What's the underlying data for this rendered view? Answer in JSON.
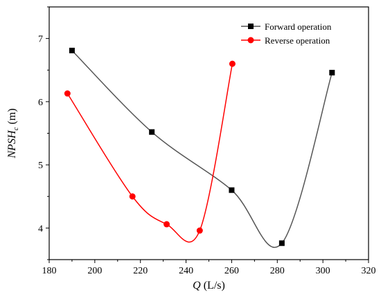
{
  "chart_data": {
    "type": "line",
    "title": "",
    "xlabel": "Q (L/s)",
    "xlabel_var": "Q",
    "xlabel_unit": " (L/s)",
    "ylabel": "NPSHc (m)",
    "ylabel_var": "NPSH",
    "ylabel_sub": "c",
    "ylabel_unit": " (m)",
    "xlim": [
      180,
      320
    ],
    "ylim": [
      3.5,
      7.5
    ],
    "xticks": [
      180,
      200,
      220,
      240,
      260,
      280,
      300,
      320
    ],
    "yticks": [
      4,
      5,
      6,
      7
    ],
    "grid": false,
    "legend_position": "top-right",
    "series": [
      {
        "name": "Forward operation",
        "marker": "square",
        "color": "#000000",
        "line_color": "#555555",
        "x": [
          190,
          225,
          260,
          282,
          304
        ],
        "y": [
          6.81,
          5.52,
          4.6,
          3.76,
          6.46
        ]
      },
      {
        "name": "Reverse operation",
        "marker": "circle",
        "color": "#ff0000",
        "line_color": "#ff0000",
        "x": [
          188,
          216.5,
          231.5,
          246,
          260.3
        ],
        "y": [
          6.13,
          4.5,
          4.06,
          3.96,
          6.6
        ]
      }
    ]
  }
}
